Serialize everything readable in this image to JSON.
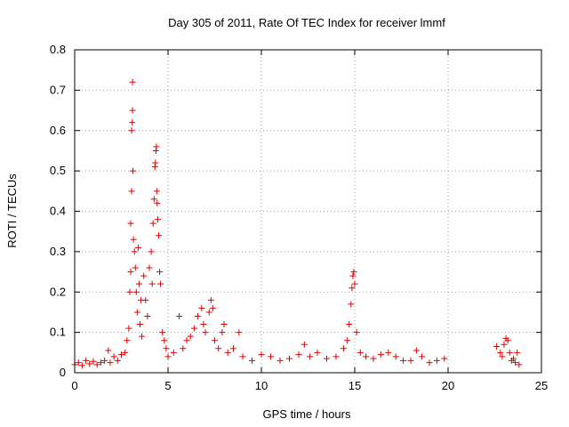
{
  "chart_data": {
    "type": "scatter",
    "title": "Day 305 of 2011, Rate Of TEC Index for receiver lmmf",
    "xlabel": "GPS time / hours",
    "ylabel": "ROTI / TECUs",
    "xlim": [
      0,
      25
    ],
    "ylim": [
      0,
      0.8
    ],
    "x_ticks": [
      "0",
      "5",
      "10",
      "15",
      "20",
      "25"
    ],
    "y_ticks": [
      "0",
      "0.1",
      "0.2",
      "0.3",
      "0.4",
      "0.5",
      "0.6",
      "0.7",
      "0.8"
    ],
    "grid": true,
    "marker": "plus",
    "color": "#e00000",
    "series": [
      {
        "points": [
          [
            0.0,
            0.02
          ],
          [
            0.2,
            0.025
          ],
          [
            0.4,
            0.018
          ],
          [
            0.6,
            0.03
          ],
          [
            0.8,
            0.022
          ],
          [
            1.0,
            0.028
          ],
          [
            1.2,
            0.02
          ],
          [
            1.4,
            0.025
          ],
          [
            1.6,
            0.03
          ],
          [
            1.8,
            0.055
          ],
          [
            1.9,
            0.025
          ],
          [
            2.1,
            0.04
          ],
          [
            2.3,
            0.03
          ],
          [
            2.5,
            0.045
          ],
          [
            2.7,
            0.05
          ],
          [
            2.8,
            0.08
          ],
          [
            2.9,
            0.11
          ],
          [
            2.95,
            0.2
          ],
          [
            3.0,
            0.25
          ],
          [
            3.0,
            0.37
          ],
          [
            3.05,
            0.45
          ],
          [
            3.05,
            0.6
          ],
          [
            3.08,
            0.62
          ],
          [
            3.1,
            0.65
          ],
          [
            3.1,
            0.72
          ],
          [
            3.12,
            0.5
          ],
          [
            3.15,
            0.33
          ],
          [
            3.2,
            0.3
          ],
          [
            3.25,
            0.26
          ],
          [
            3.3,
            0.2
          ],
          [
            3.35,
            0.15
          ],
          [
            3.4,
            0.31
          ],
          [
            3.45,
            0.22
          ],
          [
            3.5,
            0.12
          ],
          [
            3.55,
            0.18
          ],
          [
            3.6,
            0.09
          ],
          [
            3.7,
            0.24
          ],
          [
            3.8,
            0.18
          ],
          [
            3.9,
            0.14
          ],
          [
            4.0,
            0.26
          ],
          [
            4.1,
            0.3
          ],
          [
            4.15,
            0.22
          ],
          [
            4.2,
            0.37
          ],
          [
            4.25,
            0.43
          ],
          [
            4.3,
            0.51
          ],
          [
            4.32,
            0.52
          ],
          [
            4.35,
            0.55
          ],
          [
            4.38,
            0.56
          ],
          [
            4.4,
            0.45
          ],
          [
            4.42,
            0.42
          ],
          [
            4.45,
            0.38
          ],
          [
            4.5,
            0.34
          ],
          [
            4.55,
            0.25
          ],
          [
            4.6,
            0.22
          ],
          [
            4.7,
            0.1
          ],
          [
            4.8,
            0.08
          ],
          [
            4.9,
            0.06
          ],
          [
            5.0,
            0.04
          ],
          [
            5.3,
            0.05
          ],
          [
            5.6,
            0.14
          ],
          [
            5.8,
            0.06
          ],
          [
            6.0,
            0.08
          ],
          [
            6.2,
            0.09
          ],
          [
            6.4,
            0.11
          ],
          [
            6.6,
            0.14
          ],
          [
            6.8,
            0.16
          ],
          [
            6.9,
            0.12
          ],
          [
            7.0,
            0.1
          ],
          [
            7.2,
            0.15
          ],
          [
            7.3,
            0.18
          ],
          [
            7.4,
            0.16
          ],
          [
            7.5,
            0.08
          ],
          [
            7.7,
            0.06
          ],
          [
            7.9,
            0.1
          ],
          [
            8.0,
            0.12
          ],
          [
            8.2,
            0.05
          ],
          [
            8.5,
            0.06
          ],
          [
            8.8,
            0.1
          ],
          [
            9.0,
            0.04
          ],
          [
            9.5,
            0.03
          ],
          [
            10.0,
            0.045
          ],
          [
            10.5,
            0.04
          ],
          [
            11.0,
            0.03
          ],
          [
            11.5,
            0.035
          ],
          [
            12.0,
            0.045
          ],
          [
            12.3,
            0.07
          ],
          [
            12.6,
            0.04
          ],
          [
            13.0,
            0.05
          ],
          [
            13.5,
            0.035
          ],
          [
            14.0,
            0.04
          ],
          [
            14.4,
            0.06
          ],
          [
            14.6,
            0.08
          ],
          [
            14.7,
            0.12
          ],
          [
            14.8,
            0.17
          ],
          [
            14.85,
            0.21
          ],
          [
            14.9,
            0.24
          ],
          [
            14.95,
            0.25
          ],
          [
            15.0,
            0.22
          ],
          [
            15.1,
            0.1
          ],
          [
            15.3,
            0.05
          ],
          [
            15.6,
            0.04
          ],
          [
            16.0,
            0.035
          ],
          [
            16.4,
            0.045
          ],
          [
            16.8,
            0.05
          ],
          [
            17.2,
            0.04
          ],
          [
            17.6,
            0.03
          ],
          [
            18.0,
            0.03
          ],
          [
            18.3,
            0.055
          ],
          [
            18.6,
            0.04
          ],
          [
            19.0,
            0.025
          ],
          [
            19.4,
            0.03
          ],
          [
            19.8,
            0.035
          ],
          [
            22.6,
            0.065
          ],
          [
            22.8,
            0.05
          ],
          [
            22.9,
            0.04
          ],
          [
            23.0,
            0.07
          ],
          [
            23.1,
            0.085
          ],
          [
            23.2,
            0.08
          ],
          [
            23.3,
            0.05
          ],
          [
            23.4,
            0.03
          ],
          [
            23.5,
            0.035
          ],
          [
            23.6,
            0.025
          ],
          [
            23.7,
            0.05
          ],
          [
            23.8,
            0.02
          ]
        ]
      }
    ]
  }
}
